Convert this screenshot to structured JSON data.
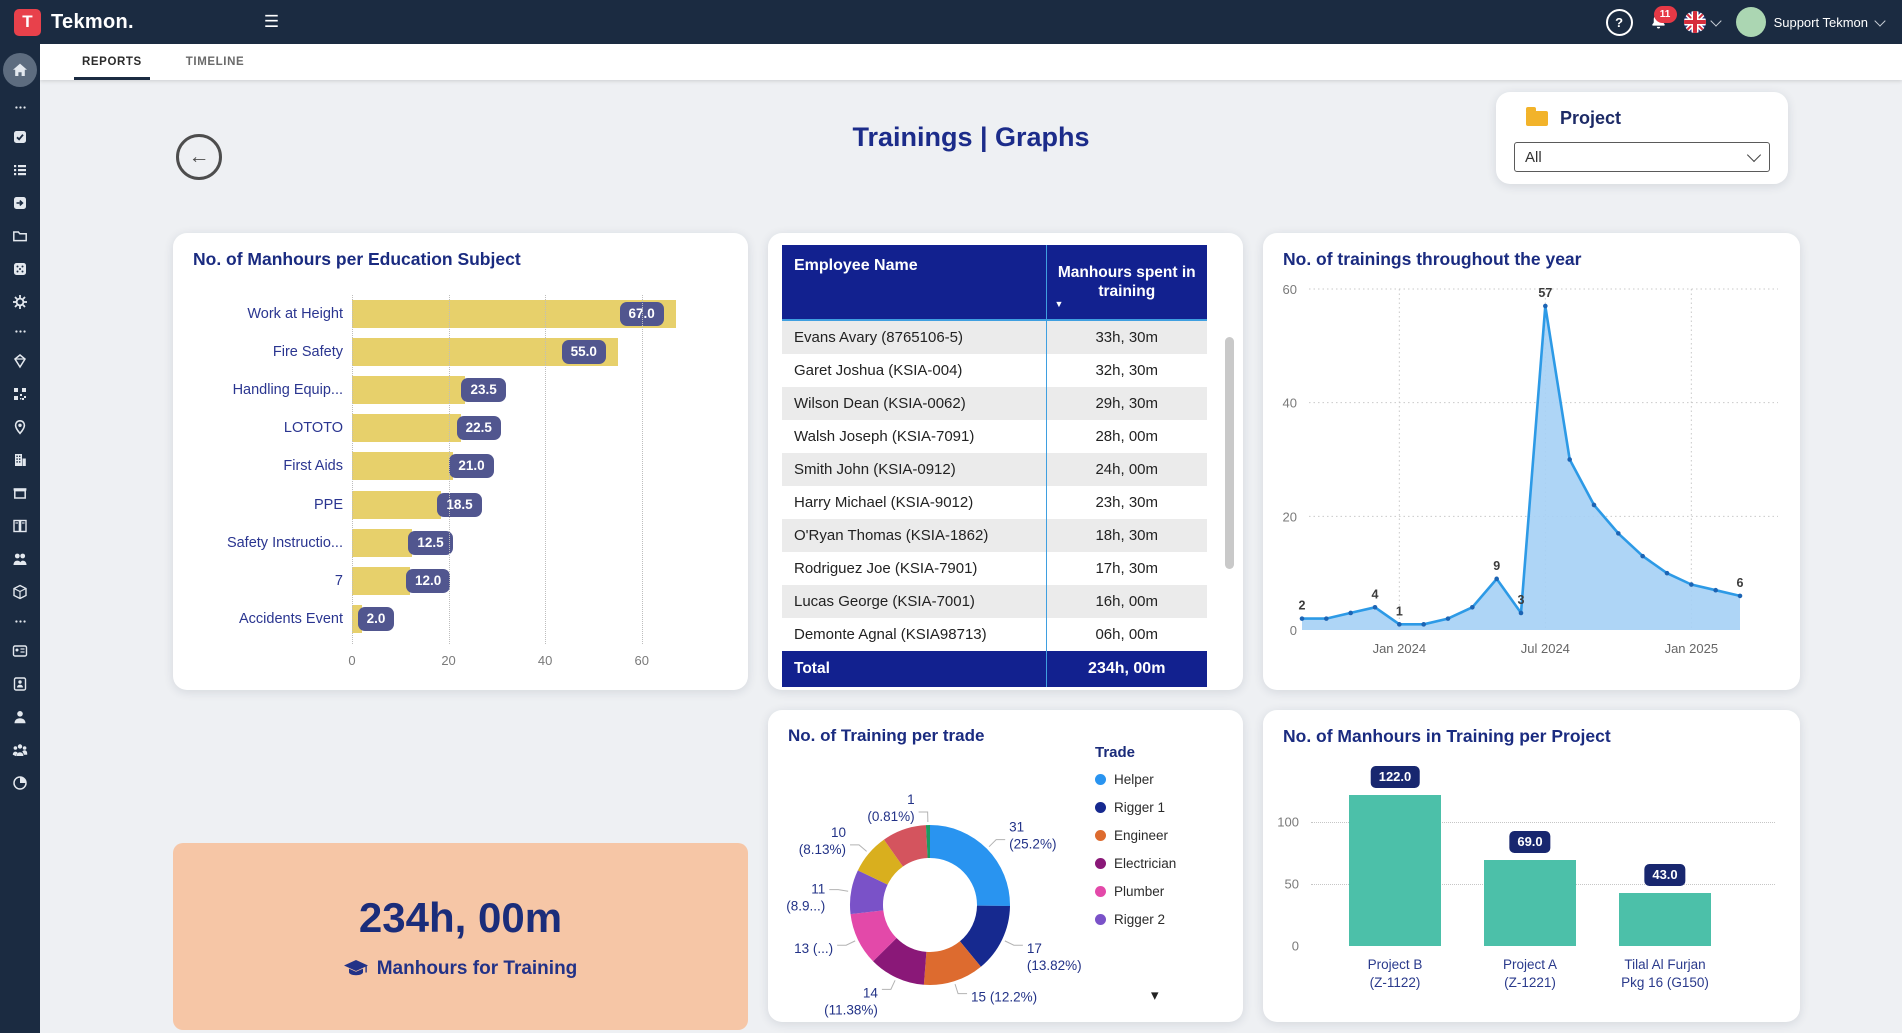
{
  "navbar": {
    "brand": "Tekmon.",
    "logo_letter": "T",
    "notification_count": "11",
    "user_name": "Support Tekmon"
  },
  "tabs": [
    {
      "label": "REPORTS",
      "active": true
    },
    {
      "label": "TIMELINE",
      "active": false
    }
  ],
  "sidebar": {
    "items": [
      "home",
      "ellipsis",
      "tasks",
      "list",
      "share-box",
      "folder",
      "cube",
      "gear",
      "ellipsis",
      "gem",
      "qr-code",
      "location-pin",
      "building",
      "archive-box",
      "lockers",
      "people",
      "package",
      "ellipsis",
      "id-card",
      "badge",
      "person",
      "team",
      "pie-chart"
    ]
  },
  "page": {
    "title": "Trainings | Graphs"
  },
  "project_filter": {
    "label": "Project",
    "value": "All"
  },
  "summary_card": {
    "value": "234h, 00m",
    "label": "Manhours for Training"
  },
  "chart_data": [
    {
      "id": "education",
      "type": "bar",
      "orientation": "horizontal",
      "title": "No. of Manhours per Education Subject",
      "categories": [
        "Work at Height",
        "Fire Safety",
        "Handling Equip...",
        "LOTOTO",
        "First Aids",
        "PPE",
        "Safety Instructio...",
        "7",
        "Accidents Event"
      ],
      "values": [
        67,
        55,
        23.5,
        22.5,
        21,
        18.5,
        12.5,
        12,
        2
      ],
      "value_labels": [
        "67.0",
        "55.0",
        "23.5",
        "22.5",
        "21.0",
        "18.5",
        "12.5",
        "12.0",
        "2.0"
      ],
      "xticks": [
        0,
        20,
        40,
        60
      ],
      "xlim": [
        0,
        70
      ],
      "bar_color": "#e7d06b",
      "pill_color": "#51568f"
    },
    {
      "id": "employee-manhours",
      "type": "table",
      "columns": [
        "Employee Name",
        "Manhours spent in training"
      ],
      "rows": [
        [
          "Evans Avary (8765106-5)",
          "33h, 30m"
        ],
        [
          "Garet Joshua (KSIA-004)",
          "32h, 30m"
        ],
        [
          "Wilson Dean (KSIA-0062)",
          "29h, 30m"
        ],
        [
          "Walsh Joseph (KSIA-7091)",
          "28h, 00m"
        ],
        [
          "Smith John (KSIA-0912)",
          "24h, 00m"
        ],
        [
          "Harry Michael (KSIA-9012)",
          "23h, 30m"
        ],
        [
          "O'Ryan Thomas (KSIA-1862)",
          "18h, 30m"
        ],
        [
          "Rodriguez Joe (KSIA-7901)",
          "17h, 30m"
        ],
        [
          "Lucas George (KSIA-7001)",
          "16h, 00m"
        ],
        [
          "Demonte Agnal (KSIA98713)",
          "06h, 00m"
        ]
      ],
      "total": [
        "Total",
        "234h, 00m"
      ],
      "header_color": "#12218f"
    },
    {
      "id": "trainings-year",
      "type": "area",
      "title": "No. of trainings throughout the year",
      "x": [
        "Sep 2023",
        "Oct 2023",
        "Nov 2023",
        "Dec 2023",
        "Jan 2024",
        "Feb 2024",
        "Mar 2024",
        "Apr 2024",
        "May 2024",
        "Jun 2024",
        "Jul 2024",
        "Aug 2024",
        "Sep 2024",
        "Oct 2024",
        "Nov 2024",
        "Dec 2024",
        "Jan 2025",
        "Feb 2025",
        "Mar 2025"
      ],
      "values": [
        2,
        2,
        3,
        4,
        1,
        1,
        2,
        4,
        9,
        3,
        57,
        30,
        22,
        17,
        13,
        10,
        8,
        7,
        6
      ],
      "point_labels": [
        "2",
        null,
        null,
        "4",
        "1",
        null,
        null,
        null,
        "9",
        "3",
        "57",
        null,
        null,
        null,
        null,
        null,
        null,
        null,
        "6"
      ],
      "xticks": [
        {
          "index": 4,
          "label": "Jan 2024"
        },
        {
          "index": 10,
          "label": "Jul 2024"
        },
        {
          "index": 16,
          "label": "Jan 2025"
        }
      ],
      "yticks": [
        0,
        20,
        40,
        60
      ],
      "ylim": [
        0,
        60
      ],
      "line_color": "#2d9ae6",
      "fill_color": "#a5d0f5",
      "marker_color": "#1c64b4"
    },
    {
      "id": "training-per-trade",
      "type": "donut",
      "title": "No. of Training per trade",
      "legend_title": "Trade",
      "legend": [
        {
          "name": "Helper",
          "color": "#2994f0"
        },
        {
          "name": "Rigger 1",
          "color": "#16298f"
        },
        {
          "name": "Engineer",
          "color": "#dd6b2f"
        },
        {
          "name": "Electrician",
          "color": "#8a1878"
        },
        {
          "name": "Plumber",
          "color": "#e349a9"
        },
        {
          "name": "Rigger 2",
          "color": "#7a52c8"
        }
      ],
      "slices": [
        {
          "value": 31,
          "color": "#2994f0",
          "label1": "31",
          "label2": "(25.2%)"
        },
        {
          "value": 17,
          "color": "#16298f",
          "label1": "17",
          "label2": "(13.82%)"
        },
        {
          "value": 15,
          "color": "#dd6b2f",
          "label1": "15 (12.2%)",
          "label2": ""
        },
        {
          "value": 14,
          "color": "#8a1878",
          "label1": "14",
          "label2": "(11.38%)"
        },
        {
          "value": 13,
          "color": "#e349a9",
          "label1": "13 (...)",
          "label2": ""
        },
        {
          "value": 11,
          "color": "#7a52c8",
          "label1": "11",
          "label2": "(8.9...)"
        },
        {
          "value": 10,
          "color": "#d9af1e",
          "label1": "10",
          "label2": "(8.13%)"
        },
        {
          "value": 11,
          "color": "#d4545e",
          "label1": "",
          "label2": ""
        },
        {
          "value": 1,
          "color": "#1b9a62",
          "label1": "1",
          "label2": "(0.81%)"
        }
      ]
    },
    {
      "id": "project-manhours",
      "type": "bar",
      "orientation": "vertical",
      "title": "No. of Manhours in Training per Project",
      "categories": [
        [
          "Project B",
          "(Z-1122)"
        ],
        [
          "Project A",
          "(Z-1221)"
        ],
        [
          "Tilal Al Furjan",
          "Pkg 16 (G150)"
        ]
      ],
      "values": [
        122,
        69,
        43
      ],
      "value_labels": [
        "122.0",
        "69.0",
        "43.0"
      ],
      "yticks": [
        0,
        50,
        100
      ],
      "ylim": [
        0,
        125
      ],
      "bar_color": "#4cc0a9",
      "pill_color": "#18276f"
    }
  ]
}
